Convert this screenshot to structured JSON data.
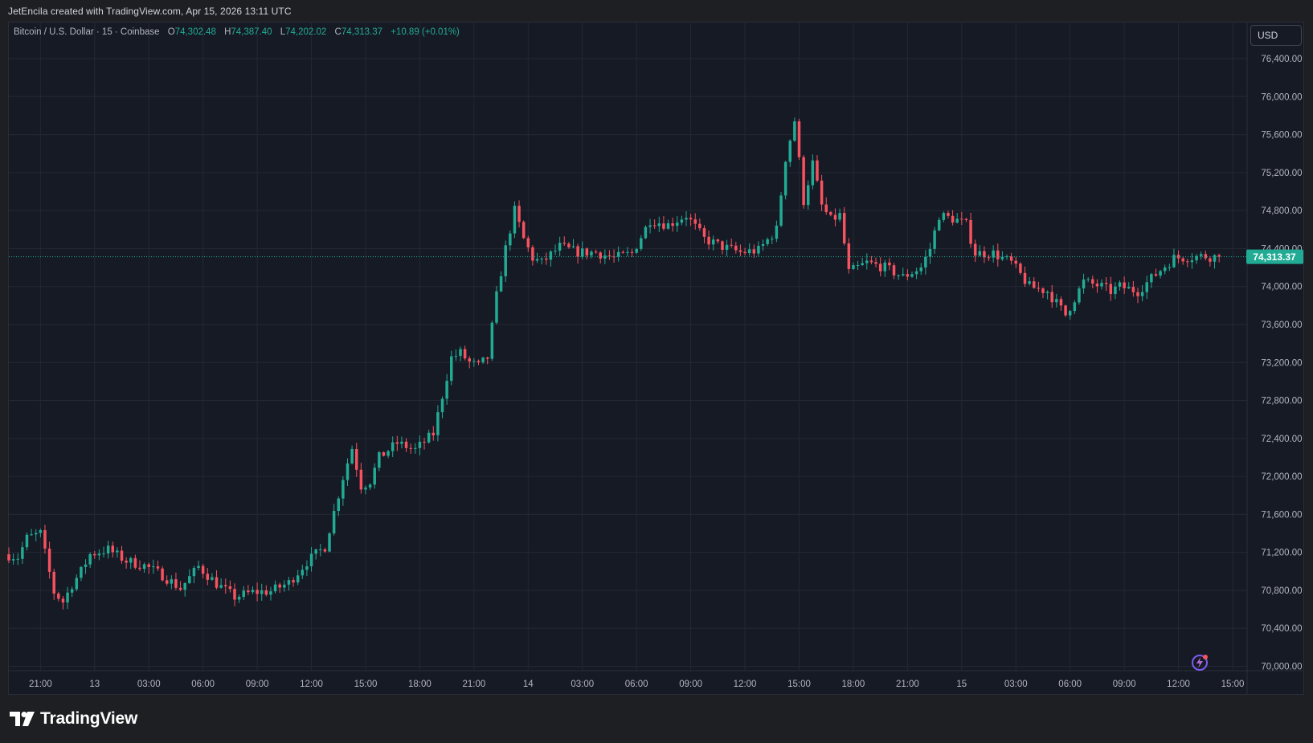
{
  "header": {
    "attribution": "JetEncila created with TradingView.com, Apr 15, 2026 13:11 UTC"
  },
  "legend": {
    "symbol": "Bitcoin / U.S. Dollar · 15 · Coinbase",
    "o_label": "O",
    "o_value": "74,302.48",
    "h_label": "H",
    "h_value": "74,387.40",
    "l_label": "L",
    "l_value": "74,202.02",
    "c_label": "C",
    "c_value": "74,313.37",
    "change": "+10.89 (+0.01%)"
  },
  "currency_button": "USD",
  "brand": {
    "name": "TradingView"
  },
  "colors": {
    "up": "#22ab94",
    "down": "#f7525f",
    "background": "#161a25",
    "grid": "#232834",
    "text": "#b2b5be",
    "price_line": "#22ab94"
  },
  "icons": {
    "logo": "tradingview-logo-icon",
    "flash": "lightning-icon"
  },
  "chart_data": {
    "type": "candlestick",
    "title": "Bitcoin / U.S. Dollar · 15 · Coinbase",
    "ylim": [
      69950,
      76720
    ],
    "y_ticks": [
      70000,
      70400,
      70800,
      71200,
      71600,
      72000,
      72400,
      72800,
      73200,
      73600,
      74000,
      74400,
      74800,
      75200,
      75600,
      76000,
      76400
    ],
    "y_tick_labels": [
      "70,000.00",
      "70,400.00",
      "70,800.00",
      "71,200.00",
      "71,600.00",
      "72,000.00",
      "72,400.00",
      "72,800.00",
      "73,200.00",
      "73,600.00",
      "74,000.00",
      "74,400.00",
      "74,800.00",
      "75,200.00",
      "75,600.00",
      "76,000.00",
      "76,400.00"
    ],
    "x_tick_labels": [
      "21:00",
      "13",
      "03:00",
      "06:00",
      "09:00",
      "12:00",
      "15:00",
      "18:00",
      "21:00",
      "14",
      "03:00",
      "06:00",
      "09:00",
      "12:00",
      "15:00",
      "18:00",
      "21:00",
      "15",
      "03:00",
      "06:00",
      "09:00",
      "12:00",
      "15:00"
    ],
    "x_tick_hours": [
      21,
      24,
      27,
      30,
      33,
      36,
      39,
      42,
      45,
      48,
      51,
      54,
      57,
      60,
      63,
      66,
      69,
      72,
      75,
      78,
      81,
      84,
      87
    ],
    "x_range_hours": [
      19.25,
      87.8
    ],
    "candle_interval_hours": 0.25,
    "current_price": 74313.37,
    "current_price_label": "74,313.37",
    "grid": true,
    "anchors_hours": [
      19.25,
      20.0,
      20.5,
      21.25,
      22.0,
      22.5,
      23.0,
      23.5,
      24.0,
      25.0,
      26.0,
      27.0,
      28.0,
      29.0,
      30.0,
      31.0,
      32.0,
      33.0,
      34.0,
      35.0,
      36.0,
      37.0,
      38.0,
      38.5,
      39.0,
      39.5,
      40.0,
      41.0,
      42.0,
      43.0,
      44.0,
      44.5,
      45.0,
      45.5,
      46.0,
      46.5,
      47.0,
      47.5,
      48.0,
      48.5,
      49.0,
      50.0,
      51.0,
      52.0,
      53.0,
      54.0,
      55.0,
      56.0,
      57.0,
      58.0,
      59.0,
      60.0,
      61.0,
      62.0,
      62.5,
      63.0,
      63.5,
      64.0,
      64.5,
      65.0,
      65.5,
      66.0,
      66.5,
      67.0,
      68.0,
      69.0,
      70.0,
      70.5,
      71.0,
      72.0,
      72.5,
      73.0,
      74.0,
      75.0,
      76.0,
      77.0,
      78.0,
      79.0,
      80.0,
      80.5,
      81.0,
      82.0,
      83.0,
      84.0,
      85.0,
      85.5,
      86.3
    ],
    "anchors_price": [
      71180,
      71150,
      71350,
      71400,
      70780,
      70680,
      70860,
      71000,
      71180,
      71230,
      71110,
      71060,
      70960,
      70820,
      71050,
      70870,
      70730,
      70780,
      70790,
      70880,
      71100,
      71260,
      71990,
      72300,
      71900,
      71950,
      72200,
      72350,
      72280,
      72450,
      73250,
      73300,
      73200,
      73160,
      73250,
      73900,
      74400,
      74800,
      74500,
      74300,
      74250,
      74420,
      74360,
      74360,
      74300,
      74350,
      74700,
      74650,
      74750,
      74500,
      74420,
      74360,
      74380,
      74600,
      75350,
      75750,
      74900,
      75300,
      74850,
      74700,
      74750,
      74150,
      74200,
      74250,
      74200,
      74100,
      74200,
      74400,
      74750,
      74700,
      74650,
      74350,
      74350,
      74250,
      74000,
      73950,
      73700,
      74050,
      74000,
      73950,
      74000,
      73950,
      74130,
      74300,
      74310,
      74320,
      74313
    ]
  }
}
